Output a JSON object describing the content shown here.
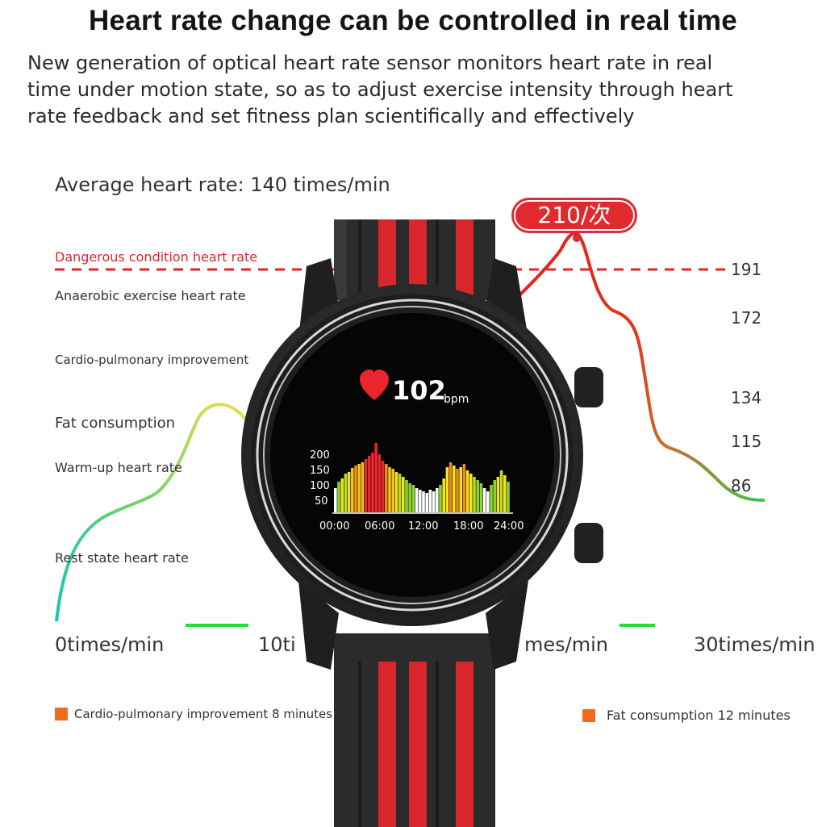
{
  "header": {
    "title": "Heart rate change can be controlled in real time",
    "description_lines": [
      "New generation of optical heart rate sensor monitors heart rate in real",
      " time under motion state, so as to adjust exercise intensity through heart",
      "rate feedback and set fitness plan scientifically and effectively"
    ]
  },
  "average": "Average heart rate: 140 times/min",
  "peak_label": "210/次",
  "zones": {
    "danger": "Dangerous condition heart rate",
    "anaerobic": "Anaerobic exercise heart rate",
    "cardio": "Cardio-pulmonary improvement",
    "fat": "Fat consumption",
    "warmup": "Warm-up heart rate",
    "rest": "Rest state heart rate"
  },
  "values": [
    "191",
    "172",
    "134",
    "115",
    "86"
  ],
  "time_axis": [
    "0times/min",
    "10ti",
    "mes/min",
    "30times/min"
  ],
  "legend": [
    {
      "label": "Cardio-pulmonary improvement 8 minutes",
      "color": "#f26a1b"
    },
    {
      "label": "Fat consumption 12 minutes",
      "color": "#f26a1b"
    }
  ],
  "watch": {
    "bpm_value": "102",
    "bpm_unit": "bpm",
    "y_ticks": [
      "200",
      "150",
      "100",
      "50"
    ],
    "x_ticks": [
      "00:00",
      "06:00",
      "12:00",
      "18:00",
      "24:00"
    ]
  },
  "colors": {
    "danger": "#e0252a",
    "strap_red": "#d8262b",
    "curve_start": "#12c7b4",
    "curve_mid": "#e8e04a",
    "curve_end": "#e02020",
    "green_marker": "#22e03a"
  }
}
